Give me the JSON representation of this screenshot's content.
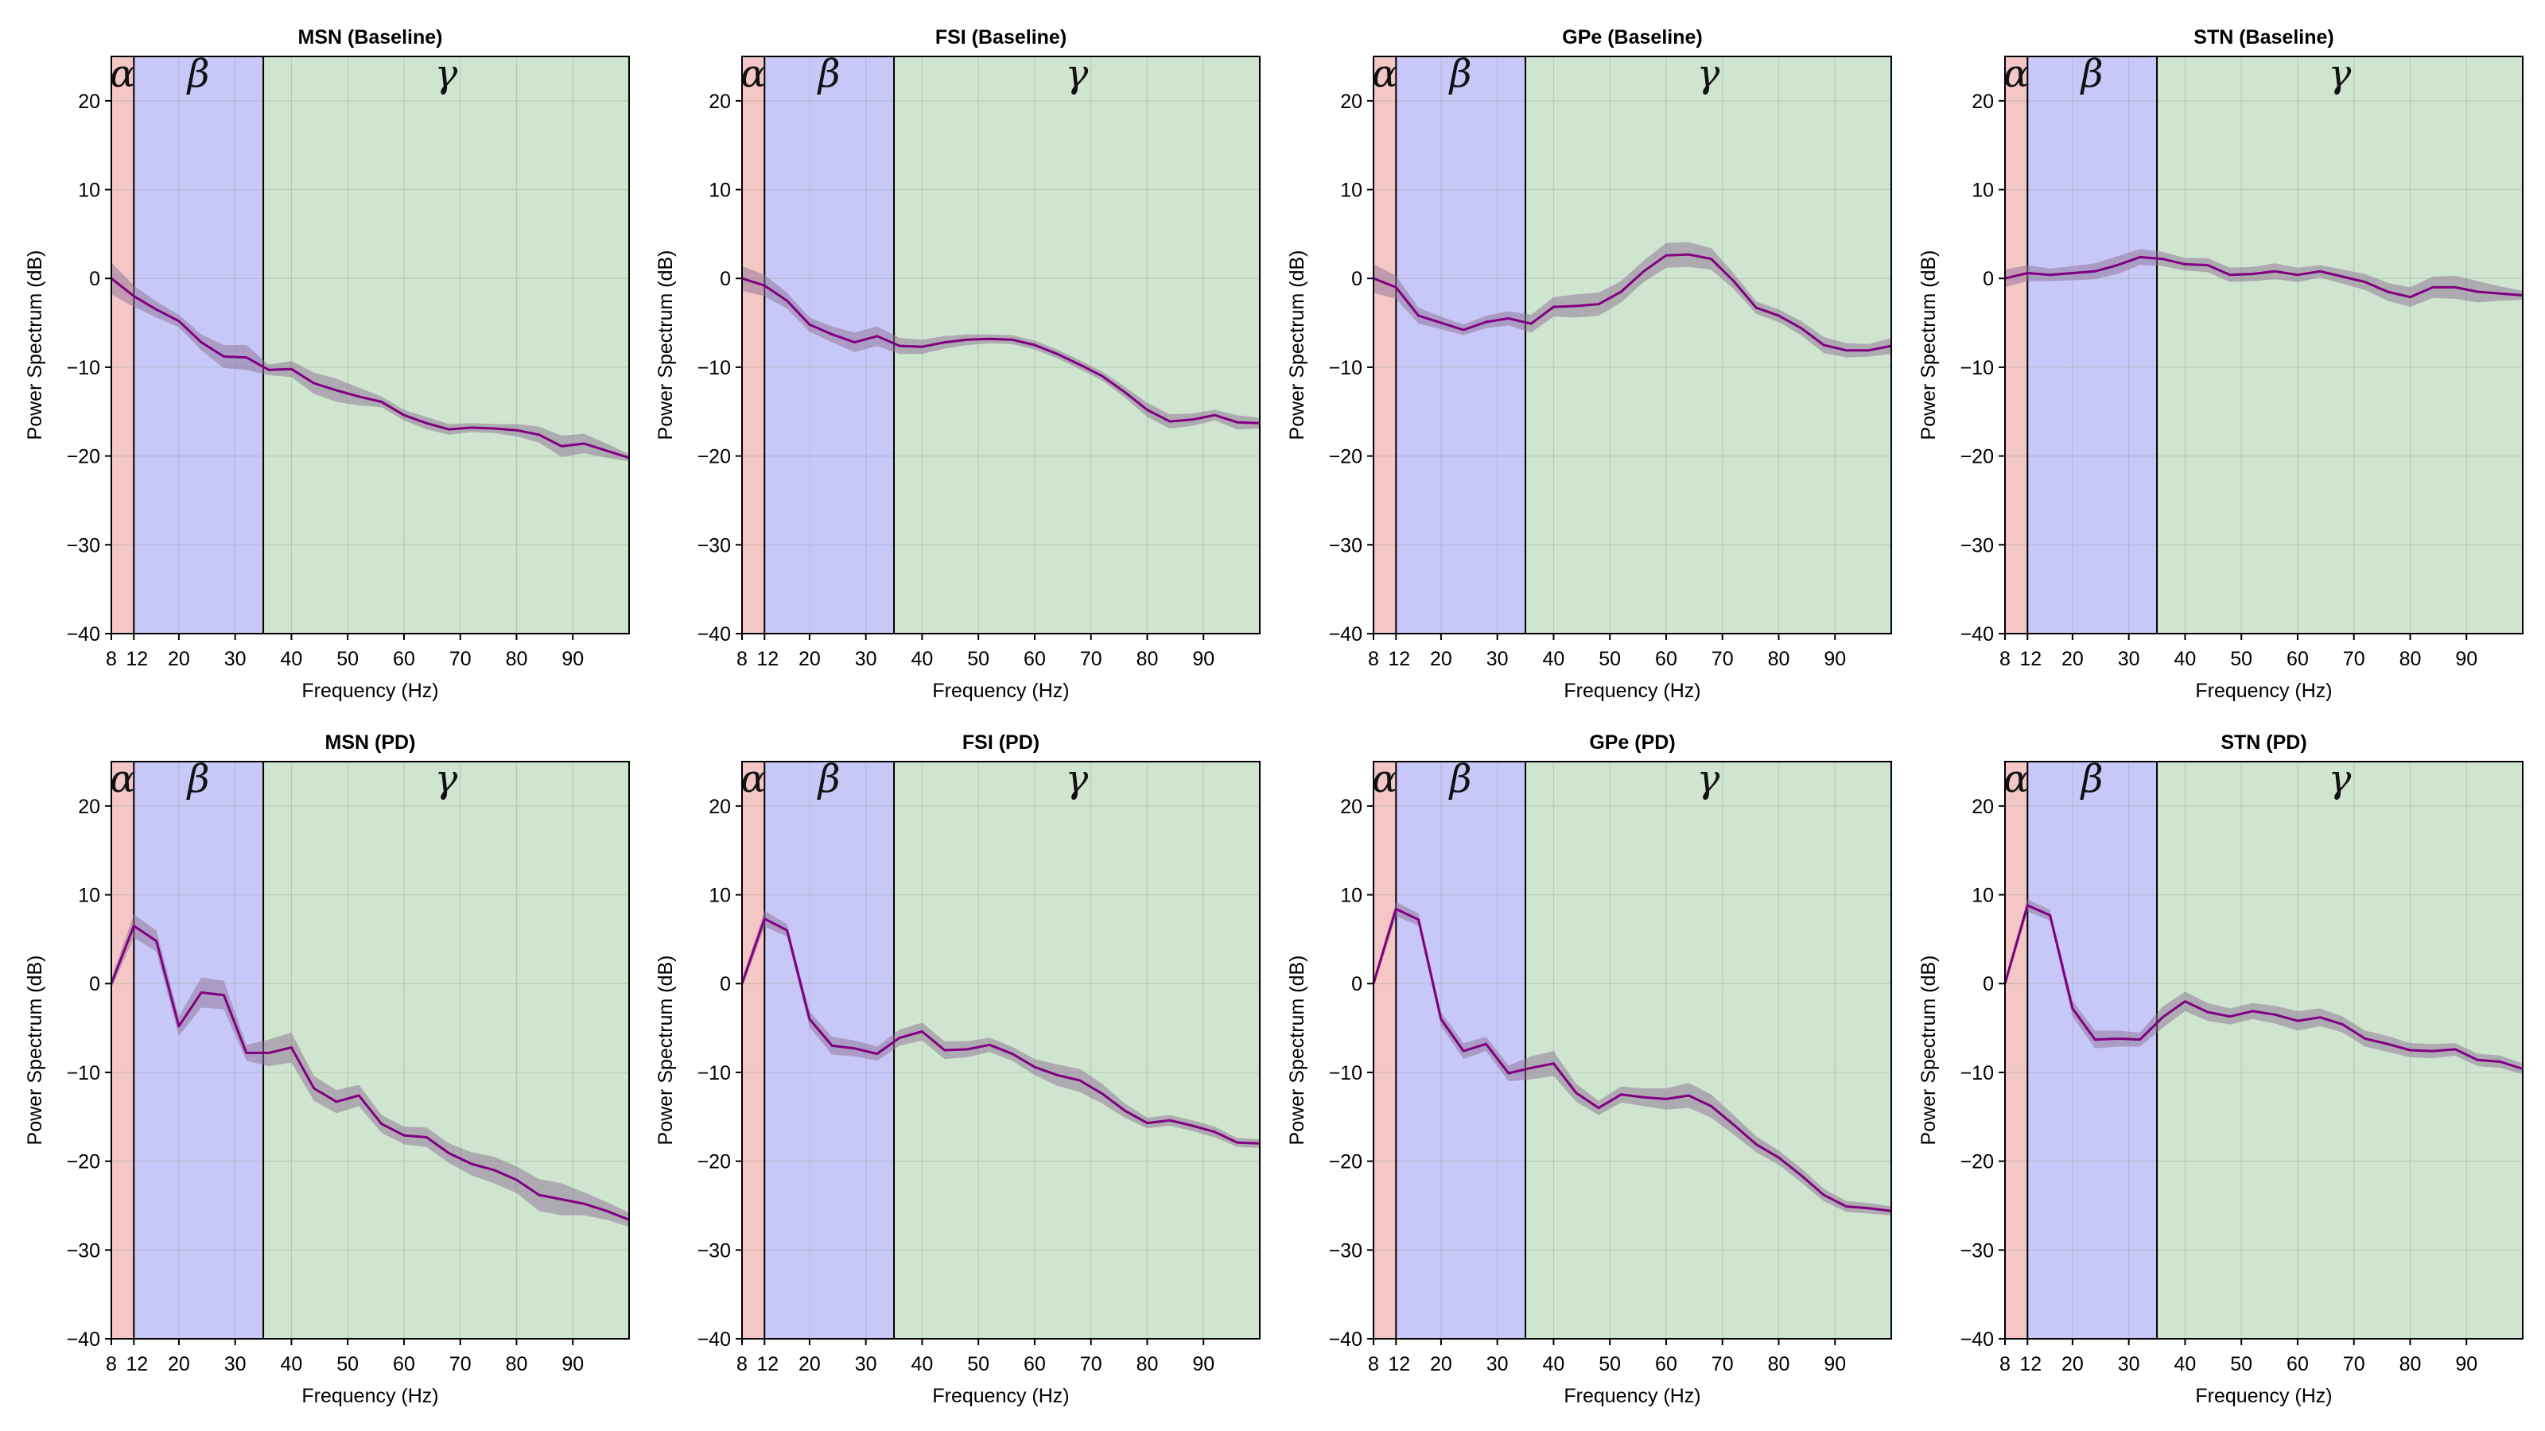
{
  "chart_data": [
    {
      "type": "line",
      "title": "MSN (Baseline)",
      "xlabel": "Frequency (Hz)",
      "ylabel": "Power Spectrum (dB)",
      "xlim": [
        8,
        100
      ],
      "ylim": [
        -40,
        25
      ],
      "xticks": [
        8,
        12,
        20,
        30,
        40,
        50,
        60,
        70,
        80,
        90
      ],
      "yticks": [
        -40,
        -30,
        -20,
        -10,
        0,
        10,
        20
      ],
      "bands": [
        {
          "label": "α",
          "from": 8,
          "to": 12,
          "color": "#f4c6c6"
        },
        {
          "label": "β",
          "from": 12,
          "to": 35,
          "color": "#c8c8f8"
        },
        {
          "label": "γ",
          "from": 35,
          "to": 100,
          "color": "#cfe5cf"
        }
      ],
      "x": [
        8,
        12,
        16,
        20,
        24,
        28,
        32,
        36,
        40,
        44,
        48,
        52,
        56,
        60,
        64,
        68,
        72,
        76,
        80,
        84,
        88,
        92,
        96,
        100
      ],
      "y": [
        0,
        -2,
        -3.5,
        -4.8,
        -7.2,
        -8.8,
        -8.9,
        -10.3,
        -10.2,
        -11.8,
        -12.6,
        -13.3,
        -13.9,
        -15.4,
        -16.3,
        -17,
        -16.8,
        -16.9,
        -17.1,
        -17.6,
        -18.9,
        -18.6,
        -19.4,
        -20.2
      ],
      "band_width": [
        1.8,
        1.2,
        0.9,
        0.7,
        0.9,
        1.3,
        1.4,
        0.6,
        0.9,
        1.2,
        1.3,
        1,
        0.6,
        0.6,
        0.7,
        0.6,
        0.5,
        0.5,
        0.7,
        0.9,
        1.2,
        1.1,
        0.8,
        0.4
      ]
    },
    {
      "type": "line",
      "title": "FSI (Baseline)",
      "xlabel": "Frequency (Hz)",
      "ylabel": "Power Spectrum (dB)",
      "xlim": [
        8,
        100
      ],
      "ylim": [
        -40,
        25
      ],
      "xticks": [
        8,
        12,
        20,
        30,
        40,
        50,
        60,
        70,
        80,
        90
      ],
      "yticks": [
        -40,
        -30,
        -20,
        -10,
        0,
        10,
        20
      ],
      "bands": [
        {
          "label": "α",
          "from": 8,
          "to": 12,
          "color": "#f4c6c6"
        },
        {
          "label": "β",
          "from": 12,
          "to": 35,
          "color": "#c8c8f8"
        },
        {
          "label": "γ",
          "from": 35,
          "to": 100,
          "color": "#cfe5cf"
        }
      ],
      "x": [
        8,
        12,
        16,
        20,
        24,
        28,
        32,
        36,
        40,
        44,
        48,
        52,
        56,
        60,
        64,
        68,
        72,
        76,
        80,
        84,
        88,
        92,
        96,
        100
      ],
      "y": [
        0,
        -0.8,
        -2.5,
        -5.2,
        -6.3,
        -7.2,
        -6.5,
        -7.6,
        -7.7,
        -7.2,
        -6.9,
        -6.8,
        -6.9,
        -7.5,
        -8.5,
        -9.7,
        -11,
        -12.8,
        -14.8,
        -16.1,
        -15.9,
        -15.4,
        -16.2,
        -16.3
      ],
      "band_width": [
        1.4,
        1.2,
        0.9,
        0.8,
        0.9,
        1.1,
        1.1,
        0.9,
        0.8,
        0.7,
        0.6,
        0.5,
        0.5,
        0.5,
        0.5,
        0.5,
        0.5,
        0.6,
        0.8,
        0.8,
        0.7,
        0.6,
        0.8,
        0.6
      ]
    },
    {
      "type": "line",
      "title": "GPe (Baseline)",
      "xlabel": "Frequency (Hz)",
      "ylabel": "Power Spectrum (dB)",
      "xlim": [
        8,
        100
      ],
      "ylim": [
        -40,
        25
      ],
      "xticks": [
        8,
        12,
        20,
        30,
        40,
        50,
        60,
        70,
        80,
        90
      ],
      "yticks": [
        -40,
        -30,
        -20,
        -10,
        0,
        10,
        20
      ],
      "bands": [
        {
          "label": "α",
          "from": 8,
          "to": 12,
          "color": "#f4c6c6"
        },
        {
          "label": "β",
          "from": 12,
          "to": 35,
          "color": "#c8c8f8"
        },
        {
          "label": "γ",
          "from": 35,
          "to": 100,
          "color": "#cfe5cf"
        }
      ],
      "x": [
        8,
        12,
        16,
        20,
        24,
        28,
        32,
        36,
        40,
        44,
        48,
        52,
        56,
        60,
        64,
        68,
        72,
        76,
        80,
        84,
        88,
        92,
        96,
        100
      ],
      "y": [
        0,
        -1,
        -4.2,
        -5,
        -5.8,
        -4.9,
        -4.5,
        -5.1,
        -3.2,
        -3.1,
        -2.9,
        -1.5,
        0.8,
        2.6,
        2.7,
        2.2,
        -0.3,
        -3.3,
        -4.2,
        -5.6,
        -7.5,
        -8.1,
        -8.1,
        -7.6
      ],
      "band_width": [
        1.6,
        1.3,
        0.9,
        0.7,
        0.6,
        0.7,
        0.8,
        1,
        1.1,
        1.3,
        1.3,
        1.2,
        1.2,
        1.4,
        1.4,
        1.2,
        0.9,
        0.7,
        0.7,
        0.8,
        0.9,
        0.8,
        0.7,
        0.9
      ]
    },
    {
      "type": "line",
      "title": "STN (Baseline)",
      "xlabel": "Frequency (Hz)",
      "ylabel": "Power Spectrum (dB)",
      "xlim": [
        8,
        100
      ],
      "ylim": [
        -40,
        25
      ],
      "xticks": [
        8,
        12,
        20,
        30,
        40,
        50,
        60,
        70,
        80,
        90
      ],
      "yticks": [
        -40,
        -30,
        -20,
        -10,
        0,
        10,
        20
      ],
      "bands": [
        {
          "label": "α",
          "from": 8,
          "to": 12,
          "color": "#f4c6c6"
        },
        {
          "label": "β",
          "from": 12,
          "to": 35,
          "color": "#c8c8f8"
        },
        {
          "label": "γ",
          "from": 35,
          "to": 100,
          "color": "#cfe5cf"
        }
      ],
      "x": [
        8,
        12,
        16,
        20,
        24,
        28,
        32,
        36,
        40,
        44,
        48,
        52,
        56,
        60,
        64,
        68,
        72,
        76,
        80,
        84,
        88,
        92,
        96,
        100
      ],
      "y": [
        0,
        0.6,
        0.4,
        0.6,
        0.8,
        1.5,
        2.4,
        2.2,
        1.6,
        1.5,
        0.4,
        0.5,
        0.8,
        0.4,
        0.8,
        0.2,
        -0.4,
        -1.5,
        -2.1,
        -1,
        -1,
        -1.5,
        -1.7,
        -1.9
      ],
      "band_width": [
        1,
        0.9,
        0.7,
        0.8,
        0.9,
        1,
        0.9,
        0.8,
        0.7,
        0.8,
        0.8,
        0.8,
        0.9,
        0.8,
        0.7,
        0.8,
        0.9,
        1,
        1.1,
        1.2,
        1.3,
        1.2,
        0.8,
        0.5
      ]
    },
    {
      "type": "line",
      "title": "MSN (PD)",
      "xlabel": "Frequency (Hz)",
      "ylabel": "Power Spectrum (dB)",
      "xlim": [
        8,
        100
      ],
      "ylim": [
        -40,
        25
      ],
      "xticks": [
        8,
        12,
        20,
        30,
        40,
        50,
        60,
        70,
        80,
        90
      ],
      "yticks": [
        -40,
        -30,
        -20,
        -10,
        0,
        10,
        20
      ],
      "bands": [
        {
          "label": "α",
          "from": 8,
          "to": 12,
          "color": "#f4c6c6"
        },
        {
          "label": "β",
          "from": 12,
          "to": 35,
          "color": "#c8c8f8"
        },
        {
          "label": "γ",
          "from": 35,
          "to": 100,
          "color": "#cfe5cf"
        }
      ],
      "x": [
        8,
        12,
        16,
        20,
        24,
        28,
        32,
        36,
        40,
        44,
        48,
        52,
        56,
        60,
        64,
        68,
        72,
        76,
        80,
        84,
        88,
        92,
        96,
        100
      ],
      "y": [
        0,
        6.5,
        4.8,
        -4.8,
        -1,
        -1.3,
        -7.8,
        -7.8,
        -7.2,
        -11.8,
        -13.3,
        -12.6,
        -15.8,
        -17.1,
        -17.3,
        -19.1,
        -20.3,
        -21,
        -22.1,
        -23.8,
        -24.3,
        -24.8,
        -25.6,
        -26.6
      ],
      "band_width": [
        0.6,
        1.3,
        1.2,
        1.1,
        1.7,
        1.6,
        0.9,
        1.5,
        1.7,
        1.4,
        1.3,
        1.2,
        1,
        1,
        1.1,
        1.1,
        1.3,
        1.5,
        1.5,
        1.8,
        1.8,
        1.3,
        1,
        0.8
      ]
    },
    {
      "type": "line",
      "title": "FSI (PD)",
      "xlabel": "Frequency (Hz)",
      "ylabel": "Power Spectrum (dB)",
      "xlim": [
        8,
        100
      ],
      "ylim": [
        -40,
        25
      ],
      "xticks": [
        8,
        12,
        20,
        30,
        40,
        50,
        60,
        70,
        80,
        90
      ],
      "yticks": [
        -40,
        -30,
        -20,
        -10,
        0,
        10,
        20
      ],
      "bands": [
        {
          "label": "α",
          "from": 8,
          "to": 12,
          "color": "#f4c6c6"
        },
        {
          "label": "β",
          "from": 12,
          "to": 35,
          "color": "#c8c8f8"
        },
        {
          "label": "γ",
          "from": 35,
          "to": 100,
          "color": "#cfe5cf"
        }
      ],
      "x": [
        8,
        12,
        16,
        20,
        24,
        28,
        32,
        36,
        40,
        44,
        48,
        52,
        56,
        60,
        64,
        68,
        72,
        76,
        80,
        84,
        88,
        92,
        96,
        100
      ],
      "y": [
        0,
        7.3,
        6,
        -4,
        -7,
        -7.3,
        -7.9,
        -6.1,
        -5.4,
        -7.5,
        -7.4,
        -6.9,
        -7.9,
        -9.4,
        -10.3,
        -10.9,
        -12.4,
        -14.3,
        -15.7,
        -15.4,
        -16,
        -16.7,
        -17.9,
        -18
      ],
      "band_width": [
        0.5,
        0.9,
        0.7,
        0.9,
        1,
        0.9,
        0.8,
        0.9,
        1,
        1,
        0.9,
        0.8,
        0.8,
        0.9,
        1.2,
        1.3,
        1.1,
        0.8,
        0.6,
        0.6,
        0.6,
        0.6,
        0.5,
        0.5
      ]
    },
    {
      "type": "line",
      "title": "GPe (PD)",
      "xlabel": "Frequency (Hz)",
      "ylabel": "Power Spectrum (dB)",
      "xlim": [
        8,
        100
      ],
      "ylim": [
        -40,
        25
      ],
      "xticks": [
        8,
        12,
        20,
        30,
        40,
        50,
        60,
        70,
        80,
        90
      ],
      "yticks": [
        -40,
        -30,
        -20,
        -10,
        0,
        10,
        20
      ],
      "bands": [
        {
          "label": "α",
          "from": 8,
          "to": 12,
          "color": "#f4c6c6"
        },
        {
          "label": "β",
          "from": 12,
          "to": 35,
          "color": "#c8c8f8"
        },
        {
          "label": "γ",
          "from": 35,
          "to": 100,
          "color": "#cfe5cf"
        }
      ],
      "x": [
        8,
        12,
        16,
        20,
        24,
        28,
        32,
        36,
        40,
        44,
        48,
        52,
        56,
        60,
        64,
        68,
        72,
        76,
        80,
        84,
        88,
        92,
        96,
        100
      ],
      "y": [
        0,
        8.4,
        7.2,
        -4,
        -7.6,
        -6.8,
        -10.1,
        -9.5,
        -9,
        -12.3,
        -14,
        -12.5,
        -12.8,
        -13,
        -12.6,
        -13.8,
        -15.9,
        -18.1,
        -19.6,
        -21.6,
        -23.8,
        -25.1,
        -25.3,
        -25.6
      ],
      "band_width": [
        0.5,
        0.8,
        0.7,
        0.8,
        0.9,
        0.8,
        0.9,
        1.3,
        1.4,
        1,
        0.8,
        0.9,
        1,
        1.2,
        1.4,
        1.3,
        1.1,
        0.9,
        0.8,
        0.8,
        0.7,
        0.6,
        0.6,
        0.5
      ]
    },
    {
      "type": "line",
      "title": "STN (PD)",
      "xlabel": "Frequency (Hz)",
      "ylabel": "Power Spectrum (dB)",
      "xlim": [
        8,
        100
      ],
      "ylim": [
        -40,
        25
      ],
      "xticks": [
        8,
        12,
        20,
        30,
        40,
        50,
        60,
        70,
        80,
        90
      ],
      "yticks": [
        -40,
        -30,
        -20,
        -10,
        0,
        10,
        20
      ],
      "bands": [
        {
          "label": "α",
          "from": 8,
          "to": 12,
          "color": "#f4c6c6"
        },
        {
          "label": "β",
          "from": 12,
          "to": 35,
          "color": "#c8c8f8"
        },
        {
          "label": "γ",
          "from": 35,
          "to": 100,
          "color": "#cfe5cf"
        }
      ],
      "x": [
        8,
        12,
        16,
        20,
        24,
        28,
        32,
        36,
        40,
        44,
        48,
        52,
        56,
        60,
        64,
        68,
        72,
        76,
        80,
        84,
        88,
        92,
        96,
        100
      ],
      "y": [
        0,
        8.8,
        7.7,
        -2.8,
        -6.3,
        -6.2,
        -6.3,
        -3.8,
        -2,
        -3.2,
        -3.7,
        -3.1,
        -3.5,
        -4.2,
        -3.8,
        -4.6,
        -6.2,
        -6.8,
        -7.5,
        -7.6,
        -7.4,
        -8.6,
        -8.8,
        -9.6
      ],
      "band_width": [
        0.5,
        0.7,
        0.6,
        0.9,
        1,
        0.9,
        0.8,
        1.2,
        1.1,
        1,
        0.9,
        0.9,
        1,
        1.1,
        1,
        0.9,
        0.9,
        0.9,
        0.8,
        0.8,
        0.7,
        0.7,
        0.7,
        0.6
      ]
    }
  ],
  "style": {
    "line_color": "#800080",
    "ci_color": "#8e6f93",
    "grid_color": "#8ca08c",
    "axis_color": "#000000"
  }
}
